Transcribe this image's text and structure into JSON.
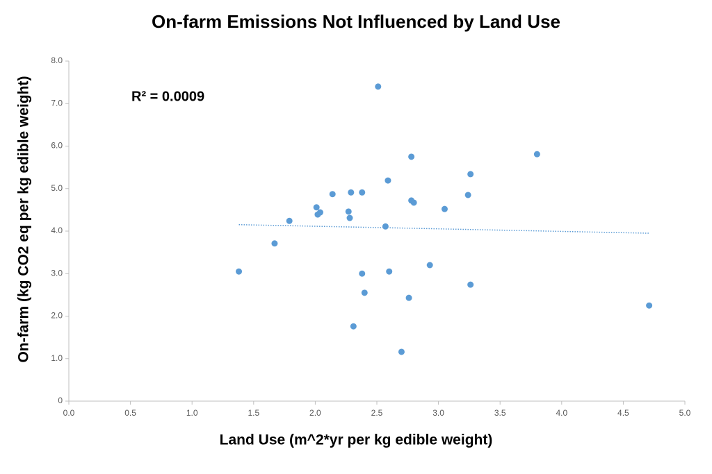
{
  "chart_data": {
    "type": "scatter",
    "title": "On-farm Emissions Not Influenced by Land Use",
    "x_label": "Land Use (m^2*yr per kg edible weight)",
    "y_label": "On-farm (kg CO2 eq per kg edible weight)",
    "annotation": "R² = 0.0009",
    "trendline": true,
    "series": [
      {
        "color": "#5b9bd5",
        "x": [
          1.38,
          1.67,
          1.79,
          2.01,
          2.02,
          2.04,
          2.14,
          2.27,
          2.28,
          2.29,
          2.31,
          2.38,
          2.38,
          2.4,
          2.51,
          2.57,
          2.59,
          2.6,
          2.7,
          2.76,
          2.78,
          2.78,
          2.8,
          2.93,
          3.05,
          3.24,
          3.26,
          3.26,
          3.8,
          4.71
        ],
        "values": [
          3.05,
          3.71,
          4.24,
          4.56,
          4.39,
          4.44,
          4.87,
          4.46,
          4.31,
          4.91,
          1.76,
          4.91,
          3.0,
          2.55,
          7.4,
          4.11,
          5.19,
          3.05,
          1.16,
          2.43,
          5.75,
          4.72,
          4.67,
          3.2,
          4.52,
          4.85,
          5.34,
          2.74,
          5.81,
          2.25
        ]
      }
    ],
    "xlim": [
      0,
      5
    ],
    "xticks": [
      {
        "value": 0,
        "label": "0.0"
      },
      {
        "value": 0.5,
        "label": "0.5"
      },
      {
        "value": 1,
        "label": "1.0"
      },
      {
        "value": 1.5,
        "label": "1.5"
      },
      {
        "value": 2,
        "label": "2.0"
      },
      {
        "value": 2.5,
        "label": "2.5"
      },
      {
        "value": 3,
        "label": "3.0"
      },
      {
        "value": 3.5,
        "label": "3.5"
      },
      {
        "value": 4,
        "label": "4.0"
      },
      {
        "value": 4.5,
        "label": "4.5"
      },
      {
        "value": 5,
        "label": "5.0"
      }
    ],
    "ylim": [
      0,
      8
    ],
    "yticks": [
      0,
      {
        "value": 1,
        "label": "1.0"
      },
      {
        "value": 2,
        "label": "2.0"
      },
      {
        "value": 3,
        "label": "3.0"
      },
      {
        "value": 4,
        "label": "4.0"
      },
      {
        "value": 5,
        "label": "5.0"
      },
      {
        "value": 6,
        "label": "6.0"
      },
      {
        "value": 7,
        "label": "7.0"
      },
      {
        "value": 8,
        "label": "8.0"
      }
    ],
    "grid": false
  }
}
